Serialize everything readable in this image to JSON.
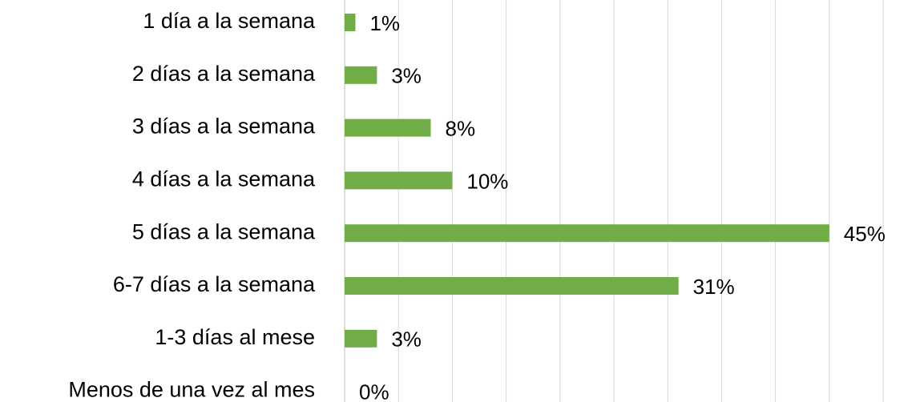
{
  "chart_data": {
    "type": "bar",
    "orientation": "horizontal",
    "categories": [
      "1 día a la semana",
      "2 días a la semana",
      "3 días a la semana",
      "4 días a la semana",
      "5 días a la semana",
      "6-7 días a la semana",
      "1-3 días al mese",
      "Menos de una vez al mes"
    ],
    "values": [
      1,
      3,
      8,
      10,
      45,
      31,
      3,
      0
    ],
    "value_labels": [
      "1%",
      "3%",
      "8%",
      "10%",
      "45%",
      "31%",
      "3%",
      "0%"
    ],
    "color": "#70ad47",
    "xlim": [
      0,
      50
    ],
    "xticks": [
      0,
      5,
      10,
      15,
      20,
      25,
      30,
      35,
      40,
      45,
      50
    ],
    "grid": true
  }
}
